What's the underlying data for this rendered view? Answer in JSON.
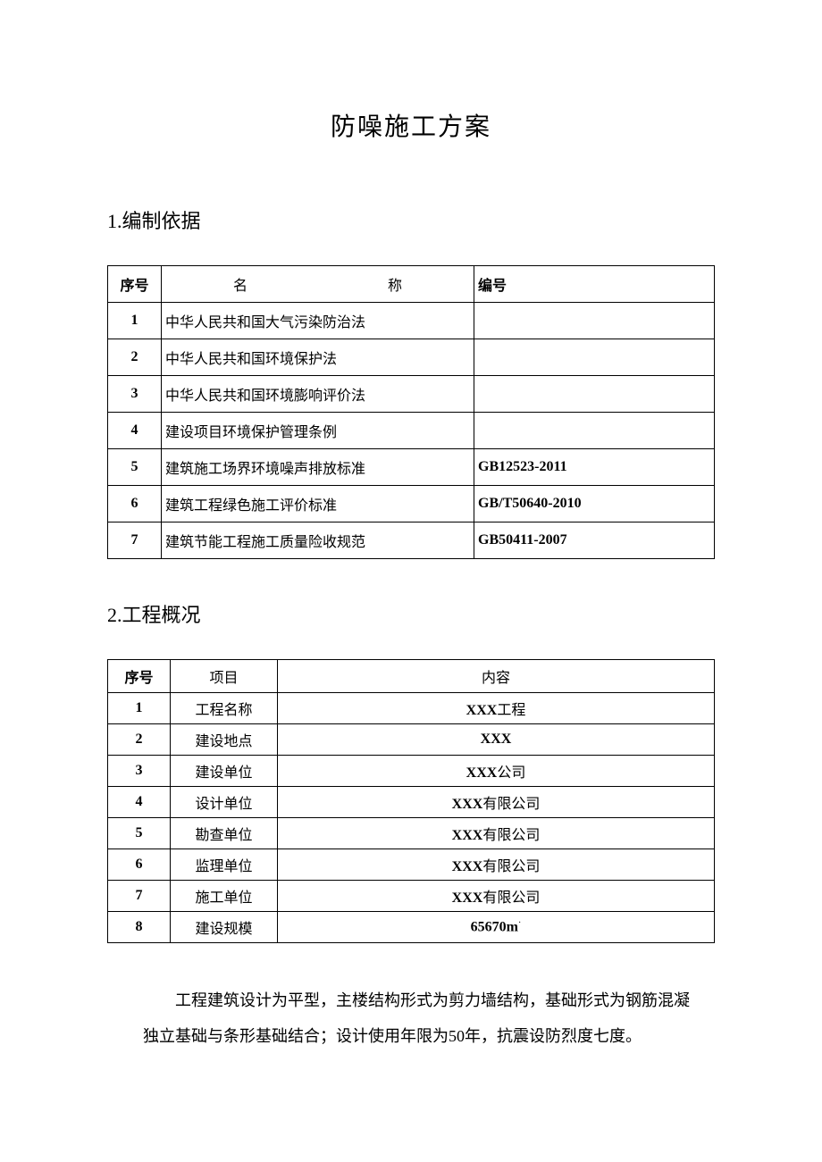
{
  "document": {
    "title": "防噪施工方案",
    "background_color": "#ffffff",
    "text_color": "#000000"
  },
  "section1": {
    "heading_number": "1.",
    "heading_text": "编制依据",
    "table": {
      "headers": {
        "seq": "序号",
        "name_left": "名",
        "name_right": "称",
        "code": "编号"
      },
      "rows": [
        {
          "seq": "1",
          "name": "中华人民共和国大气污染防治法",
          "code": ""
        },
        {
          "seq": "2",
          "name": "中华人民共和国环境保护法",
          "code": ""
        },
        {
          "seq": "3",
          "name": "中华人民共和国环境膨响评价法",
          "code": ""
        },
        {
          "seq": "4",
          "name": "建设项目环境保护管理条例",
          "code": ""
        },
        {
          "seq": "5",
          "name": "建筑施工场界环境噪声排放标准",
          "code": "GB12523-2011"
        },
        {
          "seq": "6",
          "name": "建筑工程绿色施工评价标准",
          "code": "GB/T50640-2010"
        },
        {
          "seq": "7",
          "name": "建筑节能工程施工质量险收规范",
          "code": "GB50411-2007"
        }
      ]
    }
  },
  "section2": {
    "heading_number": "2.",
    "heading_text": "工程概况",
    "table": {
      "headers": {
        "seq": "序号",
        "item": "项目",
        "content": "内容"
      },
      "rows": [
        {
          "seq": "1",
          "item": "工程名称",
          "content_prefix": "XXX",
          "content_suffix": "工程"
        },
        {
          "seq": "2",
          "item": "建设地点",
          "content_prefix": "XXX",
          "content_suffix": ""
        },
        {
          "seq": "3",
          "item": "建设单位",
          "content_prefix": "XXX",
          "content_suffix": "公司"
        },
        {
          "seq": "4",
          "item": "设计单位",
          "content_prefix": "XXX",
          "content_suffix": "有限公司"
        },
        {
          "seq": "5",
          "item": "勘查单位",
          "content_prefix": "XXX",
          "content_suffix": "有限公司"
        },
        {
          "seq": "6",
          "item": "监理单位",
          "content_prefix": "XXX",
          "content_suffix": "有限公司"
        },
        {
          "seq": "7",
          "item": "施工单位",
          "content_prefix": "XXX",
          "content_suffix": "有限公司"
        },
        {
          "seq": "8",
          "item": "建设规模",
          "content_prefix": "65670m",
          "content_suffix": ""
        }
      ]
    },
    "paragraph": {
      "part1": "工程建筑设计为平型，主楼结构形式为剪力墙结构，基础形式为钢筋混凝独立基础与条形基础结合；设计使用年限为",
      "num1": "50",
      "part2": "年，抗震设防烈度七度。"
    }
  }
}
